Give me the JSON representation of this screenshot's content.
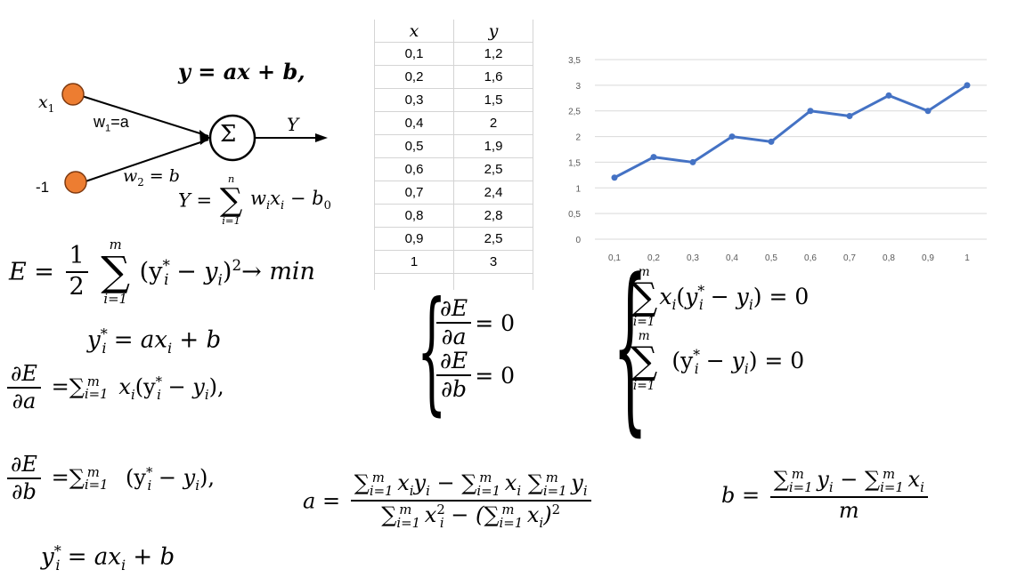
{
  "neuron": {
    "input1_label": "x",
    "input1_sub": "1",
    "input2_label": "-1",
    "weight1": "w",
    "weight1_sub": "1",
    "weight1_rhs": "=a",
    "weight2": "w",
    "weight2_sub": "2",
    "weight2_rhs": " = b",
    "sum_symbol": "Σ",
    "output_label": "Y",
    "linear_model": "y = ax + b,",
    "sum_formula_lhs": "Y =",
    "sum_upper": "n",
    "sum_lower": "i=1",
    "sum_body": "w",
    "sum_body_rest": "x",
    "sum_tail": " − b",
    "sum_tail_sub": "0",
    "input_color": "#ed7d31"
  },
  "table": {
    "headers": [
      "x",
      "y"
    ],
    "rows": [
      [
        "0,1",
        "1,2"
      ],
      [
        "0,2",
        "1,6"
      ],
      [
        "0,3",
        "1,5"
      ],
      [
        "0,4",
        "2"
      ],
      [
        "0,5",
        "1,9"
      ],
      [
        "0,6",
        "2,5"
      ],
      [
        "0,7",
        "2,4"
      ],
      [
        "0,8",
        "2,8"
      ],
      [
        "0,9",
        "2,5"
      ],
      [
        "1",
        "3"
      ]
    ]
  },
  "chart_data": {
    "type": "line",
    "categories": [
      "0,1",
      "0,2",
      "0,3",
      "0,4",
      "0,5",
      "0,6",
      "0,7",
      "0,8",
      "0,9",
      "1"
    ],
    "series": [
      {
        "values": [
          1.2,
          1.6,
          1.5,
          2,
          1.9,
          2.5,
          2.4,
          2.8,
          2.5,
          3
        ],
        "color": "#4472c4"
      }
    ],
    "ylim": [
      0,
      3.5
    ],
    "yticks": [
      "0",
      "0,5",
      "1",
      "1,5",
      "2",
      "2,5",
      "3",
      "3,5"
    ],
    "grid": true,
    "legend": "none"
  },
  "formulas": {
    "error_lhs": "E =",
    "error_frac_num": "1",
    "error_frac_den": "2",
    "sum_m": "m",
    "sum_i1": "i=1",
    "error_body": "(y",
    "error_body2": " − y",
    "error_tail": ")",
    "error_arrow": "→ min",
    "ystar": "y",
    "ystar_rhs": " = ax",
    "ystar_rhs2": " + b",
    "dE": "∂E",
    "da": "∂a",
    "db": "∂b",
    "deriv_a_body": "=∑",
    "deriv_a_rest": "x",
    "deriv_a_tail": "(y",
    "deriv_b_body": "=∑",
    "deriv_b_tail": " (y",
    "equals_zero": "= 0",
    "system_eq1_body": "x",
    "system_eq2_body": "(y",
    "a_lhs": "a =",
    "a_num": "∑",
    "a_den": "∑",
    "b_lhs": "b =",
    "b_den": "m"
  }
}
